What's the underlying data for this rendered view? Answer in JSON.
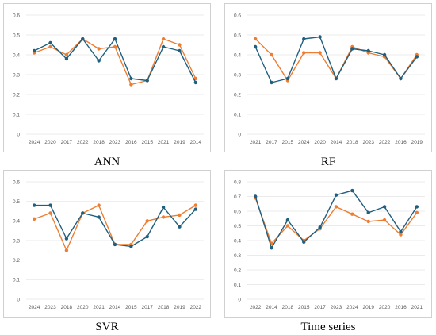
{
  "colors": {
    "actual": "#1f5f7f",
    "predicted": "#ed7d31"
  },
  "chart_data": [
    {
      "type": "line",
      "title": "ANN",
      "categories": [
        "2024",
        "2020",
        "2017",
        "2022",
        "2018",
        "2023",
        "2016",
        "2015",
        "2021",
        "2019",
        "2014"
      ],
      "ylim": [
        0,
        0.6
      ],
      "yticks": [
        "0",
        "0.1",
        "0.2",
        "0.3",
        "0.4",
        "0.5",
        "0.6"
      ],
      "grid": true,
      "series": [
        {
          "color": "#1f5f7f",
          "values": [
            0.42,
            0.46,
            0.38,
            0.48,
            0.37,
            0.48,
            0.28,
            0.27,
            0.44,
            0.42,
            0.26
          ]
        },
        {
          "color": "#ed7d31",
          "values": [
            0.41,
            0.44,
            0.4,
            0.48,
            0.43,
            0.44,
            0.25,
            0.27,
            0.48,
            0.45,
            0.28
          ]
        }
      ]
    },
    {
      "type": "line",
      "title": "RF",
      "categories": [
        "2021",
        "2017",
        "2015",
        "2024",
        "2020",
        "2014",
        "2018",
        "2023",
        "2022",
        "2016",
        "2019"
      ],
      "ylim": [
        0,
        0.6
      ],
      "yticks": [
        "0",
        "0.1",
        "0.2",
        "0.3",
        "0.4",
        "0.5",
        "0.6"
      ],
      "grid": true,
      "series": [
        {
          "color": "#1f5f7f",
          "values": [
            0.44,
            0.26,
            0.28,
            0.48,
            0.49,
            0.28,
            0.43,
            0.42,
            0.4,
            0.28,
            0.39
          ]
        },
        {
          "color": "#ed7d31",
          "values": [
            0.48,
            0.4,
            0.27,
            0.41,
            0.41,
            0.28,
            0.44,
            0.41,
            0.39,
            0.28,
            0.4
          ]
        }
      ]
    },
    {
      "type": "line",
      "title": "SVR",
      "categories": [
        "2024",
        "2023",
        "2018",
        "2020",
        "2021",
        "2014",
        "2015",
        "2017",
        "2018",
        "2019",
        "2022"
      ],
      "ylim": [
        0,
        0.6
      ],
      "yticks": [
        "0",
        "0.1",
        "0.2",
        "0.3",
        "0.4",
        "0.5",
        "0.6"
      ],
      "grid": true,
      "series": [
        {
          "color": "#1f5f7f",
          "values": [
            0.48,
            0.48,
            0.31,
            0.44,
            0.42,
            0.28,
            0.27,
            0.32,
            0.47,
            0.37,
            0.46
          ]
        },
        {
          "color": "#ed7d31",
          "values": [
            0.41,
            0.44,
            0.25,
            0.44,
            0.48,
            0.28,
            0.28,
            0.4,
            0.42,
            0.43,
            0.48
          ]
        }
      ]
    },
    {
      "type": "line",
      "title": "Time series",
      "categories": [
        "2022",
        "2014",
        "2018",
        "2015",
        "2017",
        "2023",
        "2024",
        "2019",
        "2020",
        "2016",
        "2021"
      ],
      "ylim": [
        0,
        0.8
      ],
      "yticks": [
        "0",
        "0.1",
        "0.2",
        "0.3",
        "0.4",
        "0.5",
        "0.6",
        "0.7",
        "0.8"
      ],
      "grid": true,
      "series": [
        {
          "color": "#1f5f7f",
          "values": [
            0.7,
            0.35,
            0.54,
            0.39,
            0.49,
            0.71,
            0.74,
            0.59,
            0.63,
            0.46,
            0.63
          ]
        },
        {
          "color": "#ed7d31",
          "values": [
            0.69,
            0.38,
            0.5,
            0.4,
            0.48,
            0.63,
            0.58,
            0.53,
            0.54,
            0.44,
            0.59
          ]
        }
      ]
    }
  ]
}
